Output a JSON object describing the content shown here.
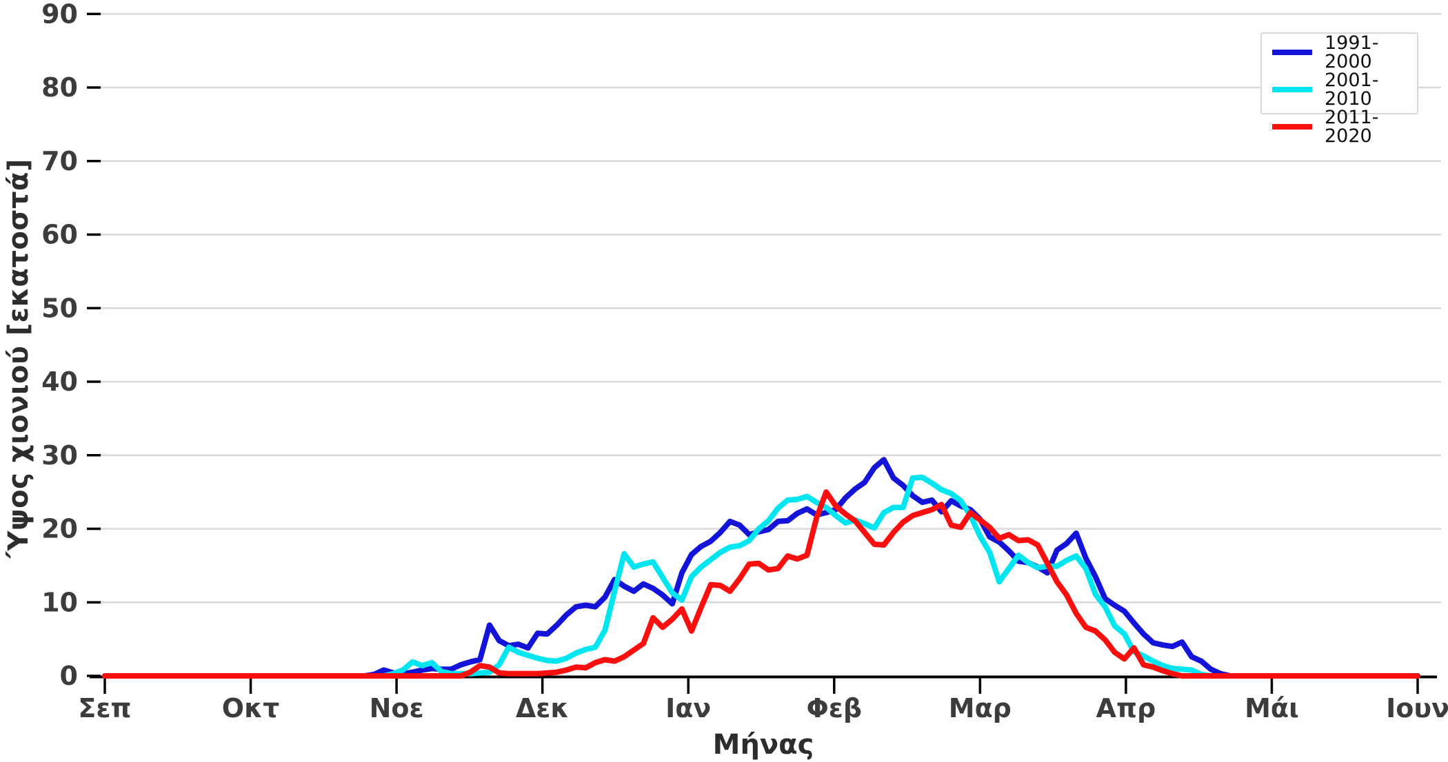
{
  "chart_data": {
    "type": "line",
    "title": "",
    "xlabel": "Μήνας",
    "ylabel": "Ύψος χιονιού [εκατοστά]",
    "x_unit": "ημέρα χιονιού-περιόδου (0 = 1 Σεπ), δείγμα ανά 2 ημέρες",
    "xlim": [
      0,
      273
    ],
    "ylim": [
      0,
      90
    ],
    "grid": "horizontal",
    "legend_position": "top-right",
    "x_tick_labels": [
      "Σεπ",
      "Οκτ",
      "Νοε",
      "Δεκ",
      "Ιαν",
      "Φεβ",
      "Μαρ",
      "Απρ",
      "Μάι",
      "Ιουν"
    ],
    "y_ticks": [
      0,
      10,
      20,
      30,
      40,
      50,
      60,
      70,
      80,
      90
    ],
    "colors": {
      "grid": "#d9d9d9",
      "axis": "#000000",
      "tick_text": "#3c3c3c",
      "axis_title_text": "#2d2d2d",
      "legend_border": "#d8d8d8",
      "legend_text": "#111111"
    },
    "x": [
      0,
      2,
      4,
      6,
      8,
      10,
      12,
      14,
      16,
      18,
      20,
      22,
      24,
      26,
      28,
      30,
      32,
      34,
      36,
      38,
      40,
      42,
      44,
      46,
      48,
      50,
      52,
      54,
      56,
      58,
      60,
      62,
      64,
      66,
      68,
      70,
      72,
      74,
      76,
      78,
      80,
      82,
      84,
      86,
      88,
      90,
      92,
      94,
      96,
      98,
      100,
      102,
      104,
      106,
      108,
      110,
      112,
      114,
      116,
      118,
      120,
      122,
      124,
      126,
      128,
      130,
      132,
      134,
      136,
      138,
      140,
      142,
      144,
      146,
      148,
      150,
      152,
      154,
      156,
      158,
      160,
      162,
      164,
      166,
      168,
      170,
      172,
      174,
      176,
      178,
      180,
      182,
      184,
      186,
      188,
      190,
      192,
      194,
      196,
      198,
      200,
      202,
      204,
      206,
      208,
      210,
      212,
      214,
      216,
      218,
      220,
      222,
      224,
      226,
      228,
      230,
      232,
      234,
      236,
      238,
      240,
      242,
      244,
      246,
      248,
      250,
      252,
      254,
      256,
      258,
      260,
      262,
      264,
      266,
      268,
      270,
      272,
      273
    ],
    "series": [
      {
        "name": "1991-2000",
        "color": "#1414d8",
        "values": [
          0,
          0,
          0,
          0,
          0,
          0,
          0,
          0,
          0,
          0,
          0,
          0,
          0,
          0,
          0,
          0,
          0,
          0,
          0,
          0,
          0,
          0,
          0,
          0,
          0,
          0,
          0,
          0,
          0.2,
          0.8,
          0.4,
          0.3,
          0.5,
          0.8,
          1,
          0.9,
          0.9,
          1.5,
          1.9,
          2.2,
          6.9,
          4.8,
          4.1,
          4.3,
          3.8,
          5.8,
          5.7,
          6.9,
          8.3,
          9.4,
          9.6,
          9.4,
          10.7,
          13.1,
          12.2,
          11.5,
          12.5,
          11.9,
          11,
          9.8,
          14,
          16.5,
          17.6,
          18.3,
          19.5,
          21,
          20.5,
          19.2,
          19.6,
          19.9,
          21,
          21.1,
          22.1,
          22.7,
          21.9,
          22.2,
          22.6,
          24.2,
          25.4,
          26.3,
          28.3,
          29.4,
          26.9,
          25.9,
          24.5,
          23.6,
          23.9,
          22.3,
          23.8,
          23.1,
          22.6,
          21.3,
          18.9,
          18.2,
          17,
          15.6,
          15.4,
          14.8,
          14,
          17.1,
          18,
          19.4,
          16,
          13.5,
          10.5,
          9.6,
          8.8,
          7.2,
          5.7,
          4.5,
          4.2,
          4,
          4.6,
          2.6,
          2,
          0.9,
          0.3,
          0,
          0,
          0,
          0,
          0,
          0,
          0,
          0,
          0,
          0,
          0,
          0,
          0,
          0,
          0,
          0,
          0,
          0,
          0,
          0,
          0
        ]
      },
      {
        "name": "2001-2010",
        "color": "#00e6f0",
        "values": [
          0,
          0,
          0,
          0,
          0,
          0,
          0,
          0,
          0,
          0,
          0,
          0,
          0,
          0,
          0,
          0,
          0,
          0,
          0,
          0,
          0,
          0,
          0,
          0,
          0,
          0,
          0,
          0,
          0,
          0,
          0.3,
          0.8,
          1.9,
          1.4,
          1.8,
          0.6,
          0.3,
          0.3,
          0.3,
          0.4,
          0.5,
          1.5,
          3.9,
          3.2,
          2.8,
          2.4,
          2.1,
          2,
          2.4,
          3.1,
          3.6,
          3.9,
          6.2,
          11.5,
          16.6,
          14.8,
          15.2,
          15.5,
          13.4,
          11.3,
          10.3,
          13.5,
          14.8,
          15.8,
          16.8,
          17.5,
          17.7,
          18.4,
          20,
          21.1,
          22.8,
          23.9,
          24,
          24.4,
          23.6,
          22.9,
          21.8,
          20.8,
          21.2,
          20.7,
          20.1,
          22.2,
          22.9,
          22.9,
          26.9,
          27,
          26.2,
          25.3,
          24.8,
          23.8,
          21.8,
          19,
          16.8,
          12.8,
          14.6,
          16.4,
          15.4,
          14.7,
          14.9,
          14.9,
          15.7,
          16.3,
          14.6,
          11.1,
          9.4,
          6.8,
          5.7,
          3.3,
          2.7,
          2,
          1.4,
          1,
          0.9,
          0.8,
          0.2,
          0,
          0,
          0,
          0,
          0,
          0,
          0,
          0,
          0,
          0,
          0,
          0,
          0,
          0,
          0,
          0,
          0,
          0,
          0
        ]
      },
      {
        "name": "2011-2020",
        "color": "#fa0f0f",
        "values": [
          0,
          0,
          0,
          0,
          0,
          0,
          0,
          0,
          0,
          0,
          0,
          0,
          0,
          0,
          0,
          0,
          0,
          0,
          0,
          0,
          0,
          0,
          0,
          0,
          0,
          0,
          0,
          0,
          0,
          0,
          0,
          0,
          0,
          0,
          0,
          0,
          0,
          0,
          0.5,
          1.4,
          1.2,
          0.4,
          0.3,
          0.3,
          0.3,
          0.3,
          0.4,
          0.5,
          0.8,
          1.2,
          1.1,
          1.8,
          2.2,
          2,
          2.6,
          3.5,
          4.4,
          7.9,
          6.6,
          7.7,
          9.1,
          6.1,
          9.3,
          12.4,
          12.3,
          11.5,
          13.2,
          15.2,
          15.3,
          14.4,
          14.6,
          16.3,
          15.9,
          16.4,
          21.5,
          25,
          23.1,
          22,
          21.1,
          19.5,
          17.9,
          17.8,
          19.5,
          20.9,
          21.8,
          22.2,
          22.6,
          23.3,
          20.5,
          20.2,
          22.2,
          21.2,
          20.2,
          18.7,
          19.2,
          18.4,
          18.5,
          17.8,
          15.3,
          12.8,
          11,
          8.5,
          6.6,
          6.1,
          4.9,
          3.2,
          2.3,
          3.8,
          1.5,
          1.2,
          0.7,
          0.3,
          0,
          0,
          0,
          0,
          0,
          0,
          0,
          0,
          0,
          0,
          0,
          0,
          0,
          0,
          0,
          0,
          0,
          0,
          0,
          0,
          0,
          0,
          0,
          0,
          0,
          0
        ]
      }
    ]
  }
}
